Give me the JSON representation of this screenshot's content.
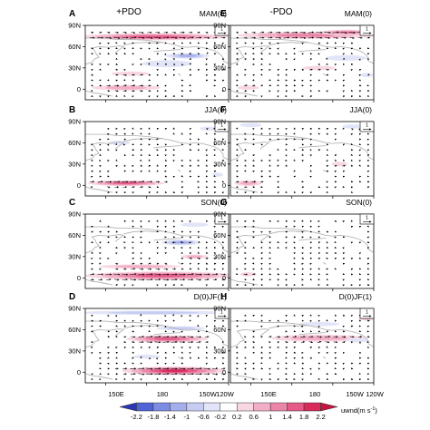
{
  "columns": [
    {
      "title": "+PDO"
    },
    {
      "title": "-PDO"
    }
  ],
  "panels": [
    {
      "label": "A",
      "season": "MAM(0)"
    },
    {
      "label": "B",
      "season": "JJA(0)"
    },
    {
      "label": "C",
      "season": "SON(0)"
    },
    {
      "label": "D",
      "season": "D(0)JF(1)"
    },
    {
      "label": "E",
      "season": "MAM(0)"
    },
    {
      "label": "F",
      "season": "JJA(0)"
    },
    {
      "label": "G",
      "season": "SON(0)"
    },
    {
      "label": "H",
      "season": "D(0)JF(1)"
    }
  ],
  "lat_ticks": [
    "90N",
    "60N",
    "30N",
    "0"
  ],
  "lon_ticks": [
    "150E",
    "180",
    "150W",
    "120W"
  ],
  "reference_vector": "1",
  "colorbar": {
    "levels": [
      "-2.2",
      "-1.8",
      "-1.4",
      "-1",
      "-0.6",
      "-0.2",
      "0.2",
      "0.6",
      "1",
      "1.4",
      "1.8",
      "2.2"
    ],
    "colors": [
      "#2a36b3",
      "#4f62d6",
      "#7b8ce2",
      "#a3aeea",
      "#c7cdf2",
      "#e2e5f8",
      "#ffffff",
      "#f8d6e2",
      "#f2aec7",
      "#ec86a8",
      "#e55a86",
      "#d92a5c",
      "#c0163f"
    ],
    "label": "uwnd(m s",
    "label_exp": "-1",
    "label_close": ")"
  },
  "anomaly_data": {
    "description_units": "uwnd (m s-1)",
    "lat_range": [
      -15,
      90
    ],
    "lon_range": [
      135,
      240
    ],
    "panels": [
      {
        "label": "A",
        "blobs": [
          {
            "lat": 74,
            "lon": 185,
            "hw": 55,
            "hh": 5,
            "v": 1.6
          },
          {
            "lat": 47,
            "lon": 210,
            "hw": 16,
            "hh": 4,
            "v": -1.4
          },
          {
            "lat": 36,
            "lon": 195,
            "hw": 18,
            "hh": 5,
            "v": -0.6
          },
          {
            "lat": 2,
            "lon": 165,
            "hw": 25,
            "hh": 4,
            "v": 0.8
          },
          {
            "lat": 22,
            "lon": 168,
            "hw": 14,
            "hh": 3,
            "v": 0.6
          }
        ]
      },
      {
        "label": "B",
        "blobs": [
          {
            "lat": 3,
            "lon": 165,
            "hw": 28,
            "hh": 4,
            "v": 1.5
          },
          {
            "lat": 80,
            "lon": 225,
            "hw": 6,
            "hh": 3,
            "v": -0.6
          },
          {
            "lat": 60,
            "lon": 160,
            "hw": 8,
            "hh": 3,
            "v": -0.5
          },
          {
            "lat": 15,
            "lon": 232,
            "hw": 4,
            "hh": 3,
            "v": -0.6
          }
        ]
      },
      {
        "label": "C",
        "blobs": [
          {
            "lat": 3,
            "lon": 190,
            "hw": 55,
            "hh": 6,
            "v": 1.8
          },
          {
            "lat": 16,
            "lon": 175,
            "hw": 30,
            "hh": 3,
            "v": 0.8
          },
          {
            "lat": 50,
            "lon": 205,
            "hw": 14,
            "hh": 4,
            "v": -1.4
          },
          {
            "lat": 30,
            "lon": 215,
            "hw": 10,
            "hh": 3,
            "v": 0.7
          },
          {
            "lat": 75,
            "lon": 215,
            "hw": 10,
            "hh": 3,
            "v": -0.5
          }
        ]
      },
      {
        "label": "D",
        "blobs": [
          {
            "lat": 84,
            "lon": 185,
            "hw": 55,
            "hh": 3,
            "v": -1.0
          },
          {
            "lat": 47,
            "lon": 195,
            "hw": 30,
            "hh": 5,
            "v": 1.8
          },
          {
            "lat": 62,
            "lon": 205,
            "hw": 18,
            "hh": 3,
            "v": -0.8
          },
          {
            "lat": 2,
            "lon": 200,
            "hw": 38,
            "hh": 6,
            "v": 2.2
          },
          {
            "lat": 22,
            "lon": 180,
            "hw": 10,
            "hh": 3,
            "v": -0.6
          }
        ]
      },
      {
        "label": "E",
        "blobs": [
          {
            "lat": 76,
            "lon": 190,
            "hw": 50,
            "hh": 5,
            "v": 1.4
          },
          {
            "lat": 80,
            "lon": 220,
            "hw": 20,
            "hh": 4,
            "v": 1.2
          },
          {
            "lat": 44,
            "lon": 220,
            "hw": 15,
            "hh": 4,
            "v": -0.6
          },
          {
            "lat": 30,
            "lon": 200,
            "hw": 12,
            "hh": 3,
            "v": 0.6
          },
          {
            "lat": 2,
            "lon": 148,
            "hw": 8,
            "hh": 3,
            "v": 0.6
          },
          {
            "lat": 20,
            "lon": 235,
            "hw": 5,
            "hh": 3,
            "v": -0.6
          }
        ]
      },
      {
        "label": "F",
        "blobs": [
          {
            "lat": 3,
            "lon": 148,
            "hw": 10,
            "hh": 4,
            "v": 0.8
          },
          {
            "lat": 85,
            "lon": 150,
            "hw": 8,
            "hh": 3,
            "v": -0.5
          },
          {
            "lat": 83,
            "lon": 225,
            "hw": 8,
            "hh": 3,
            "v": -0.6
          },
          {
            "lat": 30,
            "lon": 215,
            "hw": 6,
            "hh": 3,
            "v": 0.6
          }
        ]
      },
      {
        "label": "G",
        "blobs": [
          {
            "lat": 5,
            "lon": 148,
            "hw": 6,
            "hh": 3,
            "v": 0.5
          }
        ]
      },
      {
        "label": "H",
        "blobs": [
          {
            "lat": 48,
            "lon": 200,
            "hw": 35,
            "hh": 5,
            "v": 1.0
          },
          {
            "lat": 68,
            "lon": 200,
            "hw": 15,
            "hh": 3,
            "v": -0.5
          },
          {
            "lat": 76,
            "lon": 235,
            "hw": 6,
            "hh": 3,
            "v": 0.8
          },
          {
            "lat": 45,
            "lon": 228,
            "hw": 8,
            "hh": 3,
            "v": -0.6
          }
        ]
      }
    ]
  }
}
